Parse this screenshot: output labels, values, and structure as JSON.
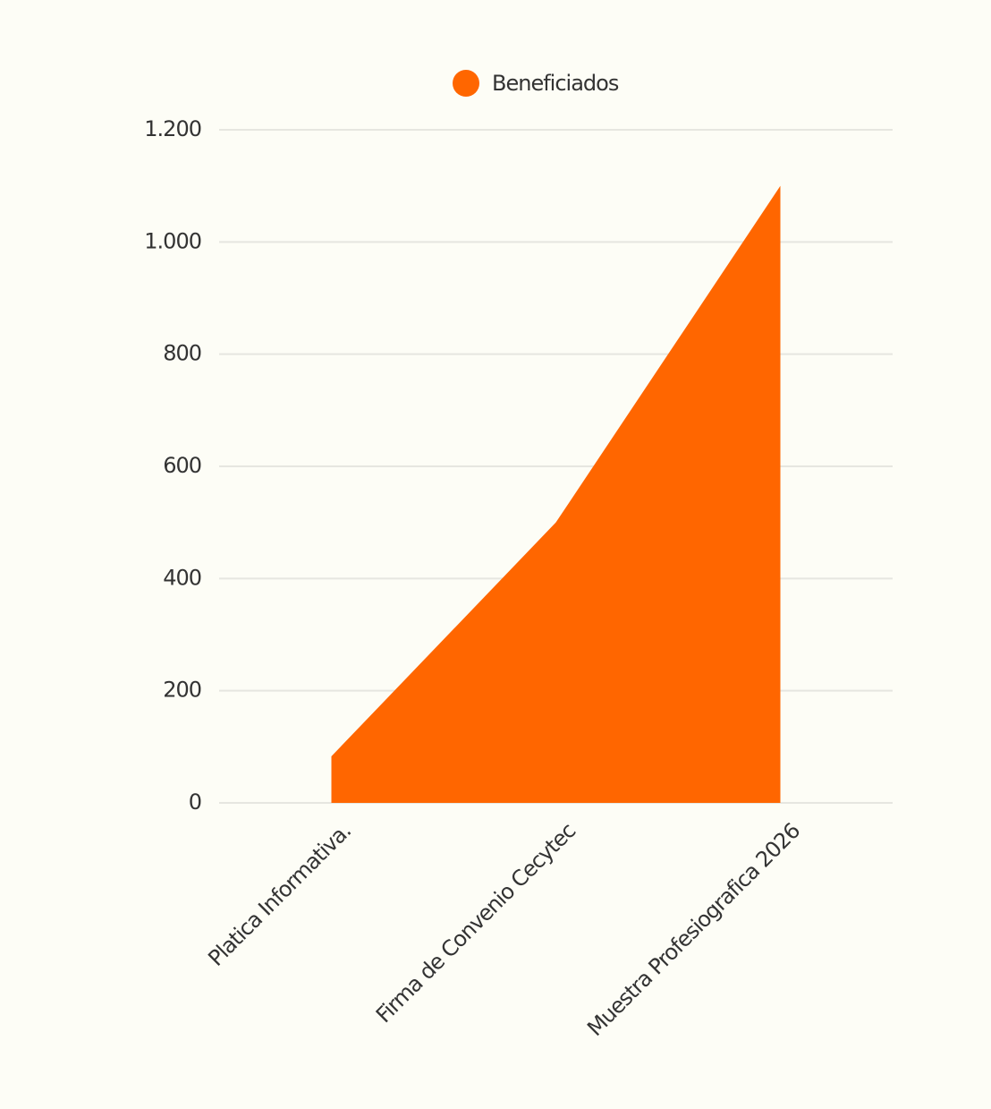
{
  "chart_data": {
    "type": "area",
    "categories": [
      "Platica Informativa.",
      "Firma de Convenio Cecytec",
      "Muestra Profesiografica 2026"
    ],
    "series": [
      {
        "name": "Beneficiados",
        "color": "#ff6600",
        "values": [
          83,
          500,
          1100
        ]
      }
    ],
    "ylim": [
      0,
      1200
    ],
    "yticks": [
      0,
      200,
      400,
      600,
      800,
      {
        "value": 1000,
        "label": "1.000"
      },
      {
        "value": 1200,
        "label": "1.200"
      }
    ],
    "grid": true,
    "legend": "top"
  }
}
